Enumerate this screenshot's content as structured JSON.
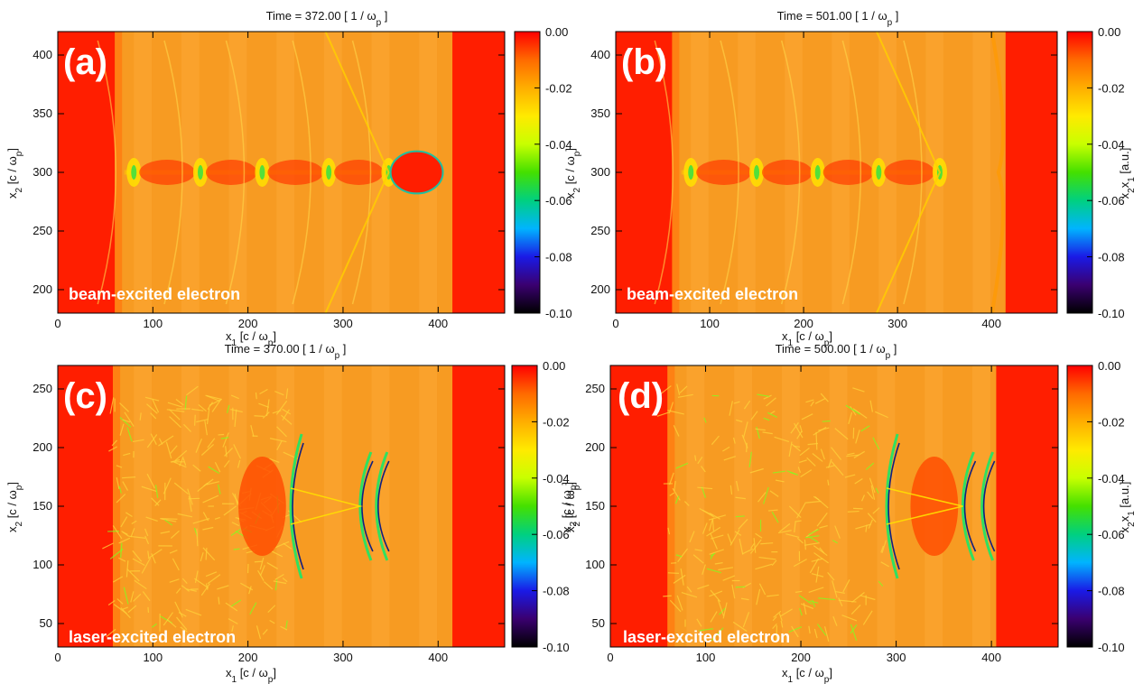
{
  "colors": {
    "background_field": "#f79b22",
    "saturated_field": "#ff1e00",
    "colormap": [
      "#000000",
      "#3a0070",
      "#1a1ae6",
      "#00b4ff",
      "#00d080",
      "#44e000",
      "#c8ff00",
      "#ffea00",
      "#ffae00",
      "#ff6a00",
      "#ff0000"
    ]
  },
  "chart_data": [
    {
      "panel": "(a)",
      "type": "heatmap",
      "title": "Time =   372.00 [ 1 / ω_p ]",
      "time_value": "372.00",
      "caption": "beam-excited electron",
      "xlabel": "x1 [c / ωp]",
      "ylabel": "x2 [c / ωp]",
      "colorbar_label": "",
      "xlim": [
        0,
        470
      ],
      "ylim": [
        180,
        420
      ],
      "xticks": [
        0,
        100,
        200,
        300,
        400
      ],
      "xtick_labels": [
        "0",
        "100",
        "200",
        "300",
        "400"
      ],
      "yticks": [
        200,
        250,
        300,
        350,
        400
      ],
      "ytick_labels": [
        "200",
        "250",
        "300",
        "350",
        "400"
      ],
      "clim": [
        -0.1,
        0.0
      ],
      "cbticks": [
        0.0,
        -0.02,
        -0.04,
        -0.06,
        -0.08,
        -0.1
      ],
      "cbtick_labels": [
        "0.00",
        "-0.02",
        "-0.04",
        "-0.06",
        "-0.08",
        "-0.10"
      ],
      "saturated_regions_x": [
        [
          0,
          60
        ],
        [
          415,
          470
        ]
      ],
      "wake_nodes_x": [
        80,
        150,
        215,
        285,
        348
      ],
      "axis_center_y": 300,
      "bubble": {
        "x_start": 350,
        "x_end": 405,
        "half_height": 18
      }
    },
    {
      "panel": "(b)",
      "type": "heatmap",
      "title": "Time =   501.00 [ 1 / ω_p ]",
      "time_value": "501.00",
      "caption": "beam-excited electron",
      "xlabel": "x1 [c / ωp]",
      "ylabel": "x2 [c / ωp]",
      "colorbar_label": "x2x1 [a.u.]",
      "xlim": [
        0,
        470
      ],
      "ylim": [
        180,
        420
      ],
      "xticks": [
        0,
        100,
        200,
        300,
        400
      ],
      "xtick_labels": [
        "0",
        "100",
        "200",
        "300",
        "400"
      ],
      "yticks": [
        200,
        250,
        300,
        350,
        400
      ],
      "ytick_labels": [
        "200",
        "250",
        "300",
        "350",
        "400"
      ],
      "clim": [
        -0.1,
        0.0
      ],
      "cbticks": [
        0.0,
        -0.02,
        -0.04,
        -0.06,
        -0.08,
        -0.1
      ],
      "cbtick_labels": [
        "0.00",
        "-0.02",
        "-0.04",
        "-0.06",
        "-0.08",
        "-0.10"
      ],
      "saturated_regions_x": [
        [
          0,
          60
        ],
        [
          415,
          470
        ]
      ],
      "wake_nodes_x": [
        80,
        150,
        215,
        280,
        345
      ],
      "axis_center_y": 300
    },
    {
      "panel": "(c)",
      "type": "heatmap",
      "title": "Time =   370.00 [ 1 / ω_p ]",
      "time_value": "370.00",
      "caption": "laser-excited electron",
      "xlabel": "x1 [c / ωp]",
      "ylabel": "x2 [c / ωp]",
      "colorbar_label": "",
      "xlim": [
        0,
        470
      ],
      "ylim": [
        30,
        270
      ],
      "xticks": [
        0,
        100,
        200,
        300,
        400
      ],
      "xtick_labels": [
        "0",
        "100",
        "200",
        "300",
        "400"
      ],
      "yticks": [
        50,
        100,
        150,
        200,
        250
      ],
      "ytick_labels": [
        "50",
        "100",
        "150",
        "200",
        "250"
      ],
      "clim": [
        -0.1,
        0.0
      ],
      "cbticks": [
        0.0,
        -0.02,
        -0.04,
        -0.06,
        -0.08,
        -0.1
      ],
      "cbtick_labels": [
        "0.00",
        "-0.02",
        "-0.04",
        "-0.06",
        "-0.08",
        "-0.10"
      ],
      "saturated_regions_x": [
        [
          0,
          58
        ],
        [
          415,
          470
        ]
      ],
      "axis_center_y": 150,
      "shock_fronts_x": [
        245,
        318,
        335
      ],
      "bubble_x": [
        190,
        240
      ]
    },
    {
      "panel": "(d)",
      "type": "heatmap",
      "title": "Time =   500.00 [ 1 / ω_p ]",
      "time_value": "500.00",
      "caption": "laser-excited electron",
      "xlabel": "x1 [c / ωp]",
      "ylabel": "x2 [c / ωp]",
      "colorbar_label": "x2x1 [a.u.]",
      "xlim": [
        0,
        470
      ],
      "ylim": [
        30,
        270
      ],
      "xticks": [
        0,
        100,
        200,
        300,
        400
      ],
      "xtick_labels": [
        "0",
        "100",
        "200",
        "300",
        "400"
      ],
      "yticks": [
        50,
        100,
        150,
        200,
        250
      ],
      "ytick_labels": [
        "50",
        "100",
        "150",
        "200",
        "250"
      ],
      "clim": [
        -0.1,
        0.0
      ],
      "cbticks": [
        0.0,
        -0.02,
        -0.04,
        -0.06,
        -0.08,
        -0.1
      ],
      "cbtick_labels": [
        "0.00",
        "-0.02",
        "-0.04",
        "-0.06",
        "-0.08",
        "-0.10"
      ],
      "saturated_regions_x": [
        [
          0,
          60
        ],
        [
          405,
          470
        ]
      ],
      "axis_center_y": 150,
      "shock_fronts_x": [
        290,
        370,
        390
      ],
      "bubble_x": [
        315,
        365
      ]
    }
  ]
}
